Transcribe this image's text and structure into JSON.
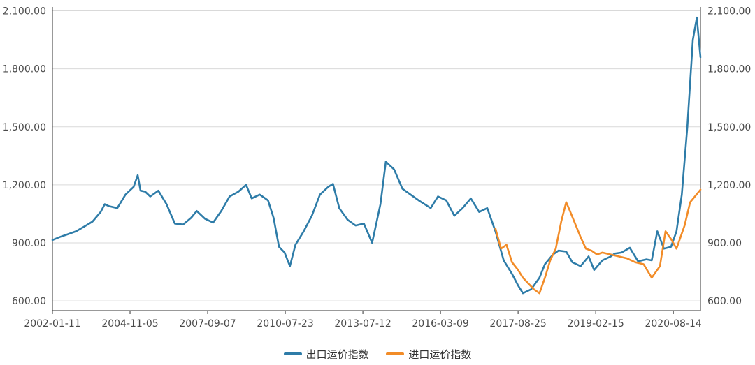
{
  "chart_data": {
    "type": "line",
    "title": "",
    "xlabel": "",
    "ylabel": "",
    "ylim": [
      550,
      2120
    ],
    "y_ticks": [
      600,
      900,
      1200,
      1500,
      1800,
      2100
    ],
    "y_tick_labels": [
      "600.00",
      "900.00",
      "1,200.00",
      "1,500.00",
      "1,800.00",
      "2,100.00"
    ],
    "x_tick_labels": [
      "2002-01-11",
      "2004-11-05",
      "2007-09-07",
      "2010-07-23",
      "2013-07-12",
      "2016-03-09",
      "2017-08-25",
      "2019-02-15",
      "2020-08-14"
    ],
    "x_range": [
      "2002-01-11",
      "2021-09-24"
    ],
    "grid": "horizontal",
    "legend_position": "bottom-center",
    "series": [
      {
        "name": "出口运价指数",
        "color": "#2e7ca8",
        "points": [
          [
            "2002-01-11",
            915
          ],
          [
            "2002-04-01",
            930
          ],
          [
            "2002-07-01",
            945
          ],
          [
            "2002-10-01",
            960
          ],
          [
            "2003-01-01",
            985
          ],
          [
            "2003-04-01",
            1010
          ],
          [
            "2003-07-01",
            1060
          ],
          [
            "2003-08-15",
            1100
          ],
          [
            "2003-10-01",
            1090
          ],
          [
            "2004-01-01",
            1080
          ],
          [
            "2004-04-01",
            1150
          ],
          [
            "2004-07-01",
            1190
          ],
          [
            "2004-08-15",
            1250
          ],
          [
            "2004-09-15",
            1170
          ],
          [
            "2004-11-05",
            1165
          ],
          [
            "2005-01-01",
            1140
          ],
          [
            "2005-04-01",
            1170
          ],
          [
            "2005-07-01",
            1100
          ],
          [
            "2005-10-01",
            1000
          ],
          [
            "2006-01-01",
            995
          ],
          [
            "2006-04-01",
            1030
          ],
          [
            "2006-06-01",
            1065
          ],
          [
            "2006-09-01",
            1025
          ],
          [
            "2006-12-01",
            1005
          ],
          [
            "2007-03-01",
            1065
          ],
          [
            "2007-06-01",
            1140
          ],
          [
            "2007-09-07",
            1165
          ],
          [
            "2007-12-01",
            1200
          ],
          [
            "2008-02-01",
            1130
          ],
          [
            "2008-05-01",
            1150
          ],
          [
            "2008-08-01",
            1120
          ],
          [
            "2008-10-01",
            1030
          ],
          [
            "2008-12-01",
            880
          ],
          [
            "2009-02-01",
            850
          ],
          [
            "2009-04-01",
            780
          ],
          [
            "2009-06-01",
            890
          ],
          [
            "2009-09-01",
            960
          ],
          [
            "2009-12-01",
            1040
          ],
          [
            "2010-03-01",
            1150
          ],
          [
            "2010-06-01",
            1190
          ],
          [
            "2010-07-23",
            1205
          ],
          [
            "2010-10-01",
            1080
          ],
          [
            "2011-01-01",
            1020
          ],
          [
            "2011-04-01",
            990
          ],
          [
            "2011-07-01",
            1000
          ],
          [
            "2011-10-01",
            900
          ],
          [
            "2012-01-01",
            1100
          ],
          [
            "2012-03-01",
            1320
          ],
          [
            "2012-06-01",
            1280
          ],
          [
            "2012-09-01",
            1180
          ],
          [
            "2012-12-01",
            1150
          ],
          [
            "2013-03-01",
            1120
          ],
          [
            "2013-07-12",
            1080
          ],
          [
            "2013-10-01",
            1140
          ],
          [
            "2014-01-01",
            1120
          ],
          [
            "2014-04-01",
            1040
          ],
          [
            "2014-07-01",
            1080
          ],
          [
            "2014-10-01",
            1130
          ],
          [
            "2015-01-01",
            1060
          ],
          [
            "2015-04-01",
            1080
          ],
          [
            "2015-07-01",
            960
          ],
          [
            "2015-10-01",
            810
          ],
          [
            "2016-01-01",
            740
          ],
          [
            "2016-03-09",
            680
          ],
          [
            "2016-05-01",
            640
          ],
          [
            "2016-08-01",
            660
          ],
          [
            "2016-11-01",
            720
          ],
          [
            "2017-01-01",
            790
          ],
          [
            "2017-04-01",
            840
          ],
          [
            "2017-06-01",
            860
          ],
          [
            "2017-08-25",
            855
          ],
          [
            "2017-11-01",
            800
          ],
          [
            "2018-02-01",
            780
          ],
          [
            "2018-05-01",
            830
          ],
          [
            "2018-07-01",
            760
          ],
          [
            "2018-10-01",
            810
          ],
          [
            "2019-01-01",
            830
          ],
          [
            "2019-02-15",
            845
          ],
          [
            "2019-05-01",
            850
          ],
          [
            "2019-08-01",
            875
          ],
          [
            "2019-11-01",
            805
          ],
          [
            "2020-02-01",
            815
          ],
          [
            "2020-04-01",
            810
          ],
          [
            "2020-06-01",
            960
          ],
          [
            "2020-08-14",
            870
          ],
          [
            "2020-11-01",
            880
          ],
          [
            "2021-01-01",
            960
          ],
          [
            "2021-03-01",
            1150
          ],
          [
            "2021-05-01",
            1500
          ],
          [
            "2021-07-01",
            1950
          ],
          [
            "2021-08-15",
            2065
          ],
          [
            "2021-09-24",
            1860
          ]
        ]
      },
      {
        "name": "进口运价指数",
        "color": "#f28c28",
        "points": [
          [
            "2015-07-01",
            975
          ],
          [
            "2015-09-01",
            870
          ],
          [
            "2015-11-01",
            890
          ],
          [
            "2016-01-01",
            800
          ],
          [
            "2016-03-09",
            760
          ],
          [
            "2016-05-01",
            720
          ],
          [
            "2016-07-01",
            690
          ],
          [
            "2016-09-01",
            660
          ],
          [
            "2016-11-01",
            640
          ],
          [
            "2017-01-01",
            720
          ],
          [
            "2017-03-01",
            810
          ],
          [
            "2017-05-01",
            870
          ],
          [
            "2017-07-01",
            1010
          ],
          [
            "2017-08-25",
            1110
          ],
          [
            "2017-10-01",
            1070
          ],
          [
            "2017-12-01",
            1000
          ],
          [
            "2018-02-01",
            930
          ],
          [
            "2018-04-01",
            870
          ],
          [
            "2018-06-01",
            860
          ],
          [
            "2018-08-01",
            840
          ],
          [
            "2018-10-01",
            850
          ],
          [
            "2019-01-01",
            840
          ],
          [
            "2019-04-01",
            830
          ],
          [
            "2019-07-01",
            820
          ],
          [
            "2019-10-01",
            800
          ],
          [
            "2020-01-01",
            790
          ],
          [
            "2020-04-01",
            720
          ],
          [
            "2020-07-01",
            780
          ],
          [
            "2020-09-01",
            960
          ],
          [
            "2020-11-01",
            920
          ],
          [
            "2021-01-01",
            870
          ],
          [
            "2021-04-01",
            990
          ],
          [
            "2021-06-01",
            1110
          ],
          [
            "2021-09-24",
            1175
          ]
        ]
      }
    ]
  }
}
